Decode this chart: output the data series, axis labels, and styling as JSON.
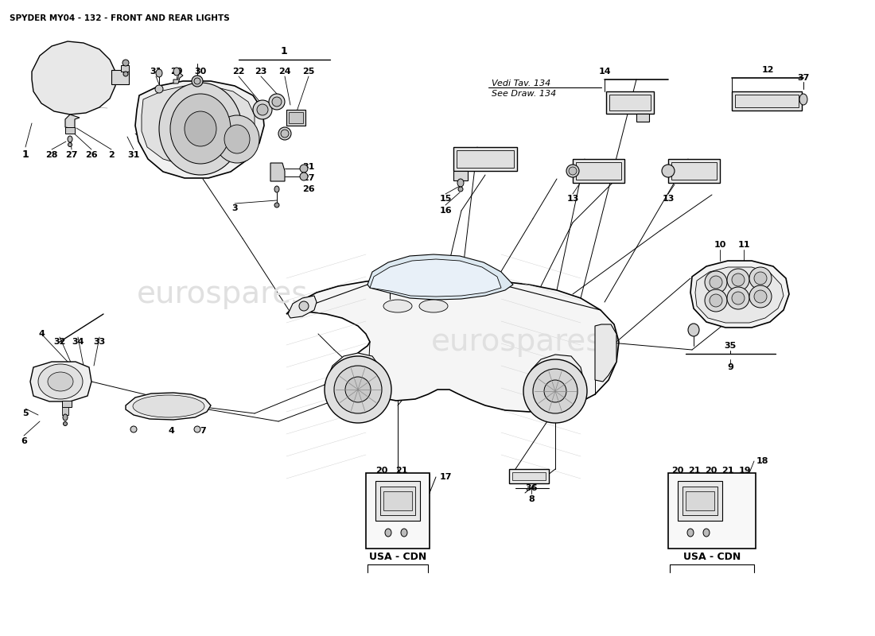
{
  "title": "SPYDER MY04 - 132 - FRONT AND REAR LIGHTS",
  "bg_color": "#ffffff",
  "title_fontsize": 7.5,
  "vedi_line1": "Vedi Tav. 134",
  "vedi_line2": "See Draw. 134",
  "usa_cdn": "USA - CDN",
  "watermark1": "eurospares",
  "watermark2": "eurospares"
}
